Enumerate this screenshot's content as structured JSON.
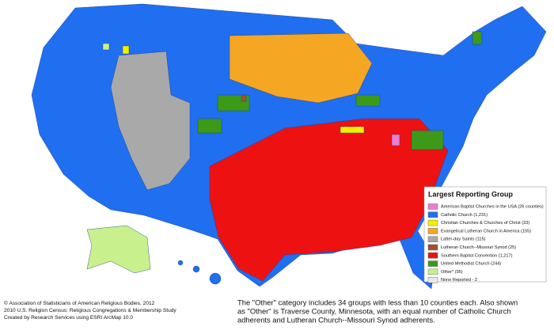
{
  "legend": {
    "title": "Largest Reporting Group",
    "items": [
      {
        "label": "American Baptist Churches in the USA (26 counties)",
        "color": "#e87fd0"
      },
      {
        "label": "Catholic Church (1,231)",
        "color": "#1f6ff0"
      },
      {
        "label": "Christian Churches & Churches of Christ (33)",
        "color": "#f6ee00"
      },
      {
        "label": "Evangelical Lutheran Church in America (155)",
        "color": "#f5a623"
      },
      {
        "label": "Latter-day Saints (115)",
        "color": "#a9a9a9"
      },
      {
        "label": "Lutheran Church--Missouri Synod (25)",
        "color": "#a0522d"
      },
      {
        "label": "Southern Baptist Convention (1,217)",
        "color": "#ee1111"
      },
      {
        "label": "United Methodist Church (244)",
        "color": "#3c9a18"
      },
      {
        "label": "Other* (95)",
        "color": "#c8f08c"
      },
      {
        "label": "None Reported - 2",
        "color": "#e8e8e8"
      }
    ]
  },
  "credits": [
    "© Association of Statisticians of American Religious Bodies, 2012",
    "2010 U.S. Religion Census: Religious Congregations & Membership Study",
    "Created by Research Services using ESRI ArcMap 10.0"
  ],
  "note": [
    "The \"Other\" category includes 34 groups with less than 10 counties each. Also shown",
    "as \"Other\" is Traverse County, Minnesota, with an equal number of Catholic Church",
    "adherents and Lutheran Church--Missouri Synod adherents."
  ]
}
